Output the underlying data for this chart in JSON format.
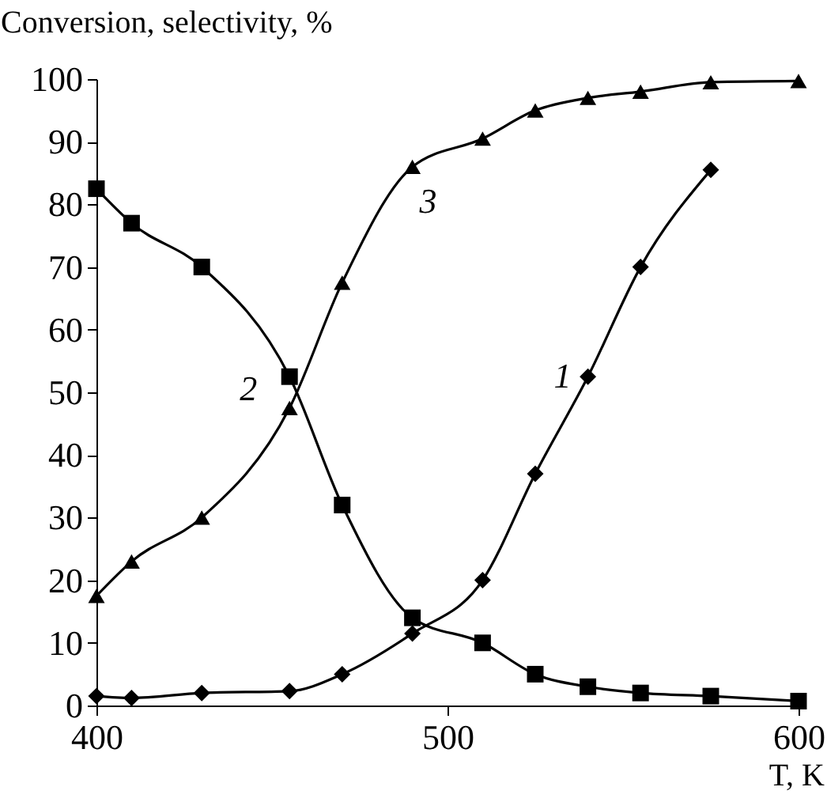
{
  "chart_data": {
    "type": "line",
    "ylabel": "Conversion, selectivity, %",
    "xlabel": "T, K",
    "xlim": [
      400,
      600
    ],
    "xticks": [
      400,
      500,
      600
    ],
    "ylim": [
      0,
      100
    ],
    "yticks": [
      0,
      10,
      20,
      30,
      40,
      50,
      60,
      70,
      80,
      90,
      100
    ],
    "grid": false,
    "legend": false,
    "line_style": "solid",
    "series": [
      {
        "name": "1",
        "color": "#000000",
        "marker": "diamond",
        "x": [
          400,
          410,
          430,
          455,
          470,
          490,
          510,
          525,
          540,
          555,
          575
        ],
        "values": [
          1.5,
          1.2,
          2,
          2.3,
          5,
          11.5,
          20,
          37,
          52.5,
          70,
          85.5
        ]
      },
      {
        "name": "2",
        "color": "#000000",
        "marker": "square",
        "x": [
          400,
          410,
          430,
          455,
          470,
          490,
          510,
          525,
          540,
          555,
          575,
          600
        ],
        "values": [
          82.5,
          77,
          70,
          52.5,
          32,
          14,
          10,
          5,
          3,
          2,
          1.5,
          0.7
        ]
      },
      {
        "name": "3",
        "color": "#000000",
        "marker": "triangle",
        "x": [
          400,
          410,
          430,
          455,
          470,
          490,
          510,
          525,
          540,
          555,
          575,
          600
        ],
        "values": [
          17.5,
          23,
          30,
          47.5,
          67.5,
          86,
          90.5,
          95,
          97,
          98,
          99.5,
          99.7
        ]
      }
    ]
  }
}
